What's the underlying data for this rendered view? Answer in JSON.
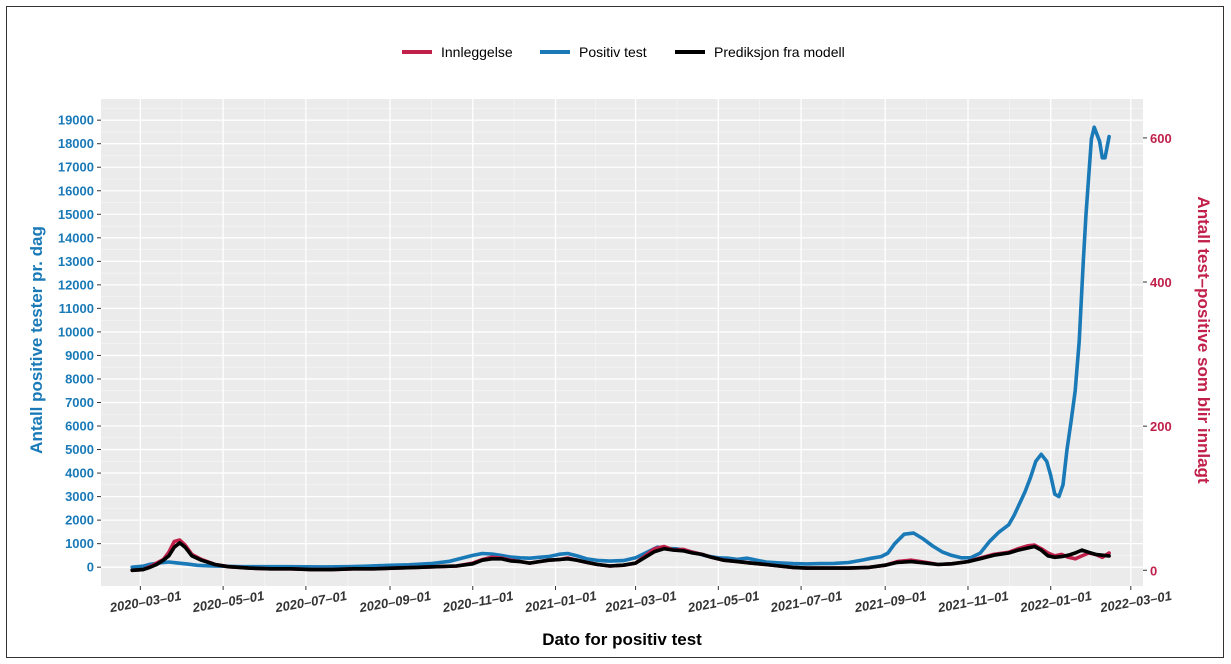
{
  "chart_data": {
    "type": "line",
    "title": "",
    "xlabel": "Dato for positiv test",
    "ylabel_left": "Antall positive tester pr. dag",
    "ylabel_right": "Antall test–positive som blir innlagt",
    "legend_position": "top",
    "grid": true,
    "x_ticks": [
      "2020–03–01",
      "2020–05–01",
      "2020–07–01",
      "2020–09–01",
      "2020–11–01",
      "2021–01–01",
      "2021–03–01",
      "2021–05–01",
      "2021–07–01",
      "2021–09–01",
      "2021–11–01",
      "2022–01–01",
      "2022–03–01"
    ],
    "y_left_ticks": [
      "0",
      "1000",
      "2000",
      "3000",
      "4000",
      "5000",
      "6000",
      "7000",
      "8000",
      "9000",
      "10000",
      "11000",
      "12000",
      "13000",
      "14000",
      "15000",
      "16000",
      "17000",
      "18000",
      "19000"
    ],
    "y_right_ticks": [
      "0",
      "200",
      "400",
      "600"
    ],
    "ylim_left": [
      -800,
      19900
    ],
    "ylim_right": [
      -21.8,
      654
    ],
    "xlim": [
      "2020-02-01",
      "2022-03-10"
    ],
    "colors": {
      "innleggelse": "#c0204a",
      "positiv": "#1a7ab8",
      "prediksjon": "#000000",
      "left_axis": "#1a7ab8",
      "right_axis": "#c0204a"
    },
    "series": [
      {
        "name": "Positiv test",
        "axis": "left",
        "x": [
          "2020-02-24",
          "2020-03-03",
          "2020-03-08",
          "2020-03-15",
          "2020-03-22",
          "2020-03-28",
          "2020-04-05",
          "2020-04-12",
          "2020-04-20",
          "2020-05-01",
          "2020-05-15",
          "2020-06-01",
          "2020-06-15",
          "2020-07-01",
          "2020-07-15",
          "2020-08-01",
          "2020-08-15",
          "2020-09-01",
          "2020-09-15",
          "2020-10-01",
          "2020-10-15",
          "2020-11-01",
          "2020-11-08",
          "2020-11-15",
          "2020-11-22",
          "2020-11-29",
          "2020-12-06",
          "2020-12-13",
          "2020-12-20",
          "2020-12-27",
          "2021-01-04",
          "2021-01-10",
          "2021-01-17",
          "2021-01-24",
          "2021-02-01",
          "2021-02-10",
          "2021-02-20",
          "2021-03-01",
          "2021-03-10",
          "2021-03-17",
          "2021-03-24",
          "2021-03-31",
          "2021-04-08",
          "2021-04-15",
          "2021-04-22",
          "2021-05-01",
          "2021-05-08",
          "2021-05-15",
          "2021-05-22",
          "2021-05-29",
          "2021-06-05",
          "2021-06-15",
          "2021-06-25",
          "2021-07-05",
          "2021-07-15",
          "2021-07-25",
          "2021-08-05",
          "2021-08-15",
          "2021-08-22",
          "2021-08-29",
          "2021-09-03",
          "2021-09-08",
          "2021-09-15",
          "2021-09-22",
          "2021-09-29",
          "2021-10-06",
          "2021-10-13",
          "2021-10-20",
          "2021-10-27",
          "2021-11-03",
          "2021-11-10",
          "2021-11-17",
          "2021-11-24",
          "2021-12-01",
          "2021-12-05",
          "2021-12-09",
          "2021-12-13",
          "2021-12-17",
          "2021-12-21",
          "2021-12-25",
          "2021-12-29",
          "2022-01-01",
          "2022-01-04",
          "2022-01-07",
          "2022-01-10",
          "2022-01-13",
          "2022-01-16",
          "2022-01-19",
          "2022-01-22",
          "2022-01-25",
          "2022-01-27",
          "2022-01-29",
          "2022-01-31",
          "2022-02-02",
          "2022-02-04",
          "2022-02-06",
          "2022-02-08",
          "2022-02-10",
          "2022-02-13"
        ],
        "values": [
          0,
          40,
          120,
          180,
          220,
          180,
          130,
          80,
          60,
          40,
          20,
          20,
          20,
          15,
          10,
          20,
          40,
          80,
          100,
          150,
          250,
          500,
          580,
          560,
          500,
          430,
          400,
          380,
          420,
          450,
          550,
          580,
          480,
          350,
          290,
          260,
          280,
          400,
          650,
          850,
          800,
          780,
          700,
          600,
          480,
          400,
          380,
          330,
          380,
          300,
          220,
          180,
          150,
          140,
          150,
          160,
          200,
          300,
          380,
          450,
          600,
          1000,
          1400,
          1450,
          1200,
          900,
          650,
          500,
          400,
          400,
          600,
          1100,
          1500,
          1800,
          2200,
          2700,
          3200,
          3800,
          4500,
          4800,
          4500,
          3900,
          3100,
          3000,
          3500,
          5000,
          6200,
          7500,
          9600,
          13000,
          15000,
          16600,
          18200,
          18700,
          18400,
          18100,
          17400,
          17400,
          18300
        ]
      },
      {
        "name": "Innleggelse",
        "axis": "right",
        "x": [
          "2020-02-24",
          "2020-03-03",
          "2020-03-08",
          "2020-03-13",
          "2020-03-18",
          "2020-03-22",
          "2020-03-26",
          "2020-03-30",
          "2020-04-03",
          "2020-04-08",
          "2020-04-15",
          "2020-04-25",
          "2020-05-05",
          "2020-05-20",
          "2020-06-05",
          "2020-06-20",
          "2020-07-05",
          "2020-07-20",
          "2020-08-05",
          "2020-08-20",
          "2020-09-05",
          "2020-09-20",
          "2020-10-05",
          "2020-10-20",
          "2020-11-01",
          "2020-11-08",
          "2020-11-15",
          "2020-11-22",
          "2020-11-29",
          "2020-12-06",
          "2020-12-13",
          "2020-12-20",
          "2020-12-27",
          "2021-01-04",
          "2021-01-10",
          "2021-01-17",
          "2021-01-24",
          "2021-02-01",
          "2021-02-10",
          "2021-02-20",
          "2021-03-01",
          "2021-03-08",
          "2021-03-15",
          "2021-03-22",
          "2021-03-29",
          "2021-04-05",
          "2021-04-12",
          "2021-04-19",
          "2021-04-26",
          "2021-05-05",
          "2021-05-15",
          "2021-05-25",
          "2021-06-05",
          "2021-06-15",
          "2021-06-25",
          "2021-07-05",
          "2021-07-20",
          "2021-08-05",
          "2021-08-20",
          "2021-09-01",
          "2021-09-10",
          "2021-09-20",
          "2021-10-01",
          "2021-10-10",
          "2021-10-20",
          "2021-11-01",
          "2021-11-10",
          "2021-11-20",
          "2021-12-01",
          "2021-12-08",
          "2021-12-15",
          "2021-12-20",
          "2021-12-25",
          "2021-12-30",
          "2022-01-04",
          "2022-01-09",
          "2022-01-14",
          "2022-01-19",
          "2022-01-24",
          "2022-01-29",
          "2022-02-03",
          "2022-02-08",
          "2022-02-13"
        ],
        "values": [
          0,
          1,
          5,
          10,
          15,
          25,
          40,
          42,
          35,
          22,
          15,
          8,
          5,
          3,
          2,
          2,
          1,
          1,
          2,
          2,
          3,
          4,
          5,
          6,
          10,
          15,
          18,
          17,
          14,
          12,
          10,
          12,
          14,
          15,
          17,
          14,
          11,
          8,
          6,
          7,
          10,
          20,
          30,
          33,
          28,
          29,
          25,
          22,
          18,
          14,
          12,
          10,
          8,
          6,
          4,
          3,
          3,
          3,
          4,
          7,
          12,
          14,
          11,
          8,
          9,
          12,
          17,
          22,
          25,
          30,
          34,
          35,
          30,
          24,
          20,
          22,
          18,
          16,
          20,
          24,
          22,
          18,
          24
        ]
      },
      {
        "name": "Prediksjon fra modell",
        "axis": "right",
        "x": [
          "2020-02-24",
          "2020-03-03",
          "2020-03-08",
          "2020-03-13",
          "2020-03-18",
          "2020-03-22",
          "2020-03-26",
          "2020-03-30",
          "2020-04-03",
          "2020-04-08",
          "2020-04-15",
          "2020-04-25",
          "2020-05-05",
          "2020-05-20",
          "2020-06-05",
          "2020-06-20",
          "2020-07-05",
          "2020-07-20",
          "2020-08-05",
          "2020-08-20",
          "2020-09-05",
          "2020-09-20",
          "2020-10-05",
          "2020-10-20",
          "2020-11-01",
          "2020-11-08",
          "2020-11-15",
          "2020-11-22",
          "2020-11-29",
          "2020-12-06",
          "2020-12-13",
          "2020-12-20",
          "2020-12-27",
          "2021-01-04",
          "2021-01-10",
          "2021-01-17",
          "2021-01-24",
          "2021-02-01",
          "2021-02-10",
          "2021-02-20",
          "2021-03-01",
          "2021-03-08",
          "2021-03-15",
          "2021-03-22",
          "2021-03-29",
          "2021-04-05",
          "2021-04-12",
          "2021-04-19",
          "2021-04-26",
          "2021-05-05",
          "2021-05-15",
          "2021-05-25",
          "2021-06-05",
          "2021-06-15",
          "2021-06-25",
          "2021-07-05",
          "2021-07-20",
          "2021-08-05",
          "2021-08-20",
          "2021-09-01",
          "2021-09-10",
          "2021-09-20",
          "2021-10-01",
          "2021-10-10",
          "2021-10-20",
          "2021-11-01",
          "2021-11-10",
          "2021-11-20",
          "2021-12-01",
          "2021-12-08",
          "2021-12-15",
          "2021-12-20",
          "2021-12-25",
          "2021-12-30",
          "2022-01-04",
          "2022-01-09",
          "2022-01-14",
          "2022-01-19",
          "2022-01-24",
          "2022-01-29",
          "2022-02-03",
          "2022-02-08",
          "2022-02-13"
        ],
        "values": [
          0,
          1,
          4,
          8,
          14,
          20,
          32,
          38,
          32,
          20,
          14,
          8,
          5,
          3,
          2,
          2,
          1,
          1,
          2,
          2,
          3,
          4,
          5,
          6,
          9,
          14,
          16,
          16,
          13,
          12,
          10,
          12,
          14,
          15,
          16,
          14,
          11,
          8,
          6,
          7,
          10,
          18,
          26,
          30,
          28,
          27,
          24,
          22,
          18,
          14,
          12,
          10,
          8,
          6,
          4,
          3,
          3,
          3,
          4,
          7,
          11,
          12,
          10,
          8,
          9,
          12,
          16,
          21,
          24,
          28,
          31,
          33,
          28,
          20,
          18,
          19,
          21,
          24,
          28,
          25,
          22,
          21,
          20
        ]
      }
    ]
  }
}
